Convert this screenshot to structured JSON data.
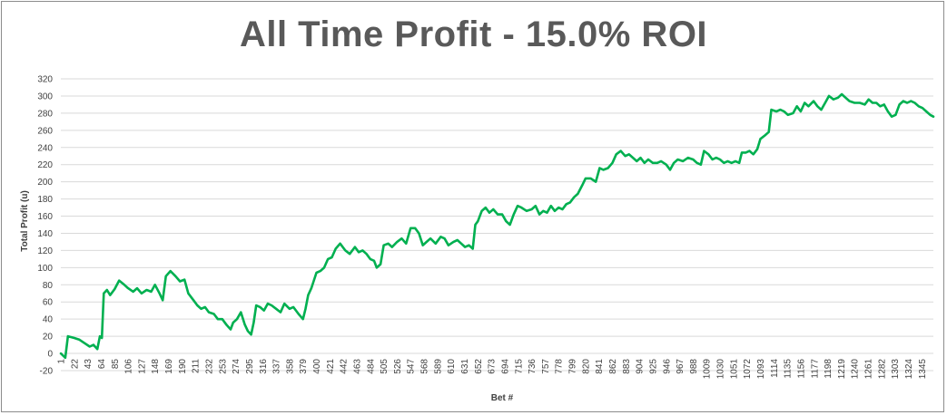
{
  "chart_data": {
    "type": "line",
    "title": "All Time Profit - 15.0% ROI",
    "xlabel": "Bet #",
    "ylabel": "Total Profit (u)",
    "ylim": [
      -20,
      320
    ],
    "ystep": 20,
    "xlim": [
      1,
      1363
    ],
    "grid": true,
    "legend": "none",
    "x_tick_labels": [
      "1",
      "22",
      "43",
      "64",
      "85",
      "106",
      "127",
      "148",
      "169",
      "190",
      "211",
      "232",
      "253",
      "274",
      "295",
      "316",
      "337",
      "358",
      "379",
      "400",
      "421",
      "442",
      "463",
      "484",
      "505",
      "526",
      "547",
      "568",
      "589",
      "610",
      "631",
      "652",
      "673",
      "694",
      "715",
      "736",
      "757",
      "778",
      "799",
      "820",
      "841",
      "862",
      "883",
      "904",
      "925",
      "946",
      "967",
      "988",
      "1009",
      "1030",
      "1051",
      "1072",
      "1093",
      "1114",
      "1135",
      "1156",
      "1177",
      "1198",
      "1219",
      "1240",
      "1261",
      "1282",
      "1303",
      "1324",
      "1345"
    ],
    "series": [
      {
        "color": "#00b050",
        "points": [
          [
            1,
            0
          ],
          [
            8,
            -5
          ],
          [
            12,
            20
          ],
          [
            22,
            18
          ],
          [
            30,
            16
          ],
          [
            38,
            12
          ],
          [
            46,
            8
          ],
          [
            52,
            10
          ],
          [
            58,
            5
          ],
          [
            62,
            20
          ],
          [
            65,
            18
          ],
          [
            68,
            70
          ],
          [
            73,
            74
          ],
          [
            78,
            68
          ],
          [
            85,
            75
          ],
          [
            92,
            85
          ],
          [
            100,
            80
          ],
          [
            106,
            76
          ],
          [
            114,
            72
          ],
          [
            120,
            76
          ],
          [
            127,
            70
          ],
          [
            135,
            74
          ],
          [
            142,
            72
          ],
          [
            148,
            80
          ],
          [
            155,
            70
          ],
          [
            160,
            62
          ],
          [
            165,
            90
          ],
          [
            172,
            96
          ],
          [
            180,
            90
          ],
          [
            187,
            84
          ],
          [
            194,
            86
          ],
          [
            200,
            70
          ],
          [
            208,
            62
          ],
          [
            214,
            56
          ],
          [
            220,
            52
          ],
          [
            226,
            54
          ],
          [
            232,
            48
          ],
          [
            240,
            46
          ],
          [
            246,
            40
          ],
          [
            253,
            40
          ],
          [
            260,
            33
          ],
          [
            266,
            28
          ],
          [
            270,
            36
          ],
          [
            276,
            40
          ],
          [
            282,
            48
          ],
          [
            288,
            34
          ],
          [
            293,
            26
          ],
          [
            298,
            22
          ],
          [
            302,
            36
          ],
          [
            306,
            56
          ],
          [
            312,
            54
          ],
          [
            318,
            50
          ],
          [
            324,
            58
          ],
          [
            330,
            56
          ],
          [
            337,
            52
          ],
          [
            344,
            48
          ],
          [
            350,
            58
          ],
          [
            358,
            52
          ],
          [
            364,
            54
          ],
          [
            372,
            46
          ],
          [
            379,
            40
          ],
          [
            383,
            52
          ],
          [
            387,
            68
          ],
          [
            392,
            76
          ],
          [
            400,
            94
          ],
          [
            406,
            96
          ],
          [
            412,
            100
          ],
          [
            418,
            110
          ],
          [
            424,
            112
          ],
          [
            430,
            122
          ],
          [
            437,
            128
          ],
          [
            445,
            120
          ],
          [
            452,
            116
          ],
          [
            460,
            124
          ],
          [
            466,
            118
          ],
          [
            472,
            120
          ],
          [
            478,
            116
          ],
          [
            484,
            110
          ],
          [
            490,
            108
          ],
          [
            494,
            100
          ],
          [
            500,
            104
          ],
          [
            505,
            126
          ],
          [
            512,
            128
          ],
          [
            518,
            124
          ],
          [
            526,
            130
          ],
          [
            533,
            134
          ],
          [
            540,
            128
          ],
          [
            547,
            146
          ],
          [
            554,
            146
          ],
          [
            560,
            140
          ],
          [
            566,
            126
          ],
          [
            572,
            130
          ],
          [
            578,
            134
          ],
          [
            586,
            128
          ],
          [
            594,
            136
          ],
          [
            600,
            134
          ],
          [
            606,
            126
          ],
          [
            614,
            130
          ],
          [
            620,
            132
          ],
          [
            626,
            128
          ],
          [
            632,
            124
          ],
          [
            638,
            126
          ],
          [
            644,
            122
          ],
          [
            648,
            150
          ],
          [
            652,
            154
          ],
          [
            658,
            166
          ],
          [
            664,
            170
          ],
          [
            670,
            164
          ],
          [
            676,
            168
          ],
          [
            683,
            162
          ],
          [
            690,
            162
          ],
          [
            696,
            154
          ],
          [
            702,
            150
          ],
          [
            708,
            162
          ],
          [
            714,
            172
          ],
          [
            720,
            170
          ],
          [
            728,
            166
          ],
          [
            736,
            168
          ],
          [
            742,
            172
          ],
          [
            748,
            162
          ],
          [
            754,
            166
          ],
          [
            760,
            164
          ],
          [
            766,
            172
          ],
          [
            772,
            166
          ],
          [
            778,
            170
          ],
          [
            784,
            168
          ],
          [
            790,
            174
          ],
          [
            796,
            176
          ],
          [
            802,
            182
          ],
          [
            808,
            186
          ],
          [
            815,
            196
          ],
          [
            820,
            204
          ],
          [
            828,
            204
          ],
          [
            836,
            200
          ],
          [
            842,
            216
          ],
          [
            848,
            214
          ],
          [
            855,
            216
          ],
          [
            862,
            222
          ],
          [
            868,
            232
          ],
          [
            875,
            236
          ],
          [
            882,
            230
          ],
          [
            888,
            232
          ],
          [
            894,
            228
          ],
          [
            900,
            224
          ],
          [
            906,
            228
          ],
          [
            912,
            222
          ],
          [
            918,
            226
          ],
          [
            925,
            222
          ],
          [
            932,
            222
          ],
          [
            938,
            224
          ],
          [
            946,
            220
          ],
          [
            952,
            214
          ],
          [
            958,
            222
          ],
          [
            964,
            226
          ],
          [
            972,
            224
          ],
          [
            980,
            228
          ],
          [
            988,
            226
          ],
          [
            994,
            222
          ],
          [
            1000,
            220
          ],
          [
            1005,
            236
          ],
          [
            1012,
            232
          ],
          [
            1018,
            226
          ],
          [
            1024,
            228
          ],
          [
            1030,
            226
          ],
          [
            1036,
            222
          ],
          [
            1042,
            224
          ],
          [
            1048,
            222
          ],
          [
            1054,
            224
          ],
          [
            1060,
            222
          ],
          [
            1064,
            234
          ],
          [
            1070,
            234
          ],
          [
            1076,
            236
          ],
          [
            1082,
            232
          ],
          [
            1088,
            238
          ],
          [
            1093,
            250
          ],
          [
            1100,
            254
          ],
          [
            1106,
            258
          ],
          [
            1110,
            284
          ],
          [
            1118,
            282
          ],
          [
            1124,
            284
          ],
          [
            1130,
            282
          ],
          [
            1136,
            278
          ],
          [
            1144,
            280
          ],
          [
            1150,
            288
          ],
          [
            1156,
            282
          ],
          [
            1162,
            292
          ],
          [
            1168,
            288
          ],
          [
            1176,
            294
          ],
          [
            1182,
            288
          ],
          [
            1188,
            284
          ],
          [
            1194,
            292
          ],
          [
            1200,
            300
          ],
          [
            1207,
            296
          ],
          [
            1214,
            298
          ],
          [
            1220,
            302
          ],
          [
            1226,
            298
          ],
          [
            1232,
            294
          ],
          [
            1240,
            292
          ],
          [
            1248,
            292
          ],
          [
            1256,
            290
          ],
          [
            1262,
            296
          ],
          [
            1268,
            292
          ],
          [
            1274,
            292
          ],
          [
            1280,
            288
          ],
          [
            1286,
            290
          ],
          [
            1292,
            282
          ],
          [
            1298,
            276
          ],
          [
            1304,
            278
          ],
          [
            1310,
            290
          ],
          [
            1316,
            294
          ],
          [
            1322,
            292
          ],
          [
            1328,
            294
          ],
          [
            1334,
            292
          ],
          [
            1340,
            288
          ],
          [
            1346,
            286
          ],
          [
            1352,
            282
          ],
          [
            1358,
            278
          ],
          [
            1363,
            276
          ]
        ]
      }
    ]
  }
}
